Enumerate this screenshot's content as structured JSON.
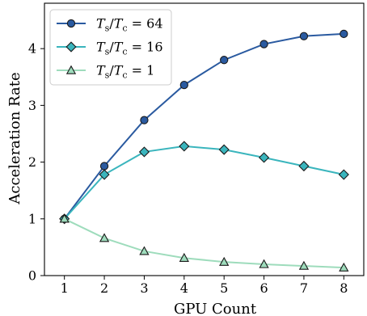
{
  "chart_data": {
    "type": "line",
    "xlabel": "GPU Count",
    "ylabel": "Acceleration Rate",
    "x": [
      1,
      2,
      3,
      4,
      5,
      6,
      7,
      8
    ],
    "xlim": [
      0.5,
      8.5
    ],
    "ylim": [
      0,
      4.8
    ],
    "xticks": [
      "1",
      "2",
      "3",
      "4",
      "5",
      "6",
      "7",
      "8"
    ],
    "yticks": [
      "0",
      "1",
      "2",
      "3",
      "4"
    ],
    "grid": false,
    "legend_position": "top-left",
    "series": [
      {
        "name": "T_s/T_c = 64",
        "legend": {
          "t": "T",
          "s": "s",
          "c": "c",
          "value": "64"
        },
        "marker": "circle",
        "color": "#2a5aa0",
        "marker_fill": "#2a5aa0",
        "values": [
          1.0,
          1.93,
          2.74,
          3.36,
          3.8,
          4.08,
          4.22,
          4.26
        ]
      },
      {
        "name": "T_s/T_c = 16",
        "legend": {
          "t": "T",
          "s": "s",
          "c": "c",
          "value": "16"
        },
        "marker": "diamond",
        "color": "#3ab5bd",
        "marker_fill": "#3ab5bd",
        "values": [
          1.0,
          1.78,
          2.18,
          2.28,
          2.22,
          2.08,
          1.93,
          1.78
        ]
      },
      {
        "name": "T_s/T_c = 1",
        "legend": {
          "t": "T",
          "s": "s",
          "c": "c",
          "value": "1"
        },
        "marker": "triangle",
        "color": "#9edcbc",
        "marker_fill": "#9edcbc",
        "values": [
          1.0,
          0.66,
          0.43,
          0.31,
          0.24,
          0.2,
          0.17,
          0.14
        ]
      }
    ]
  }
}
